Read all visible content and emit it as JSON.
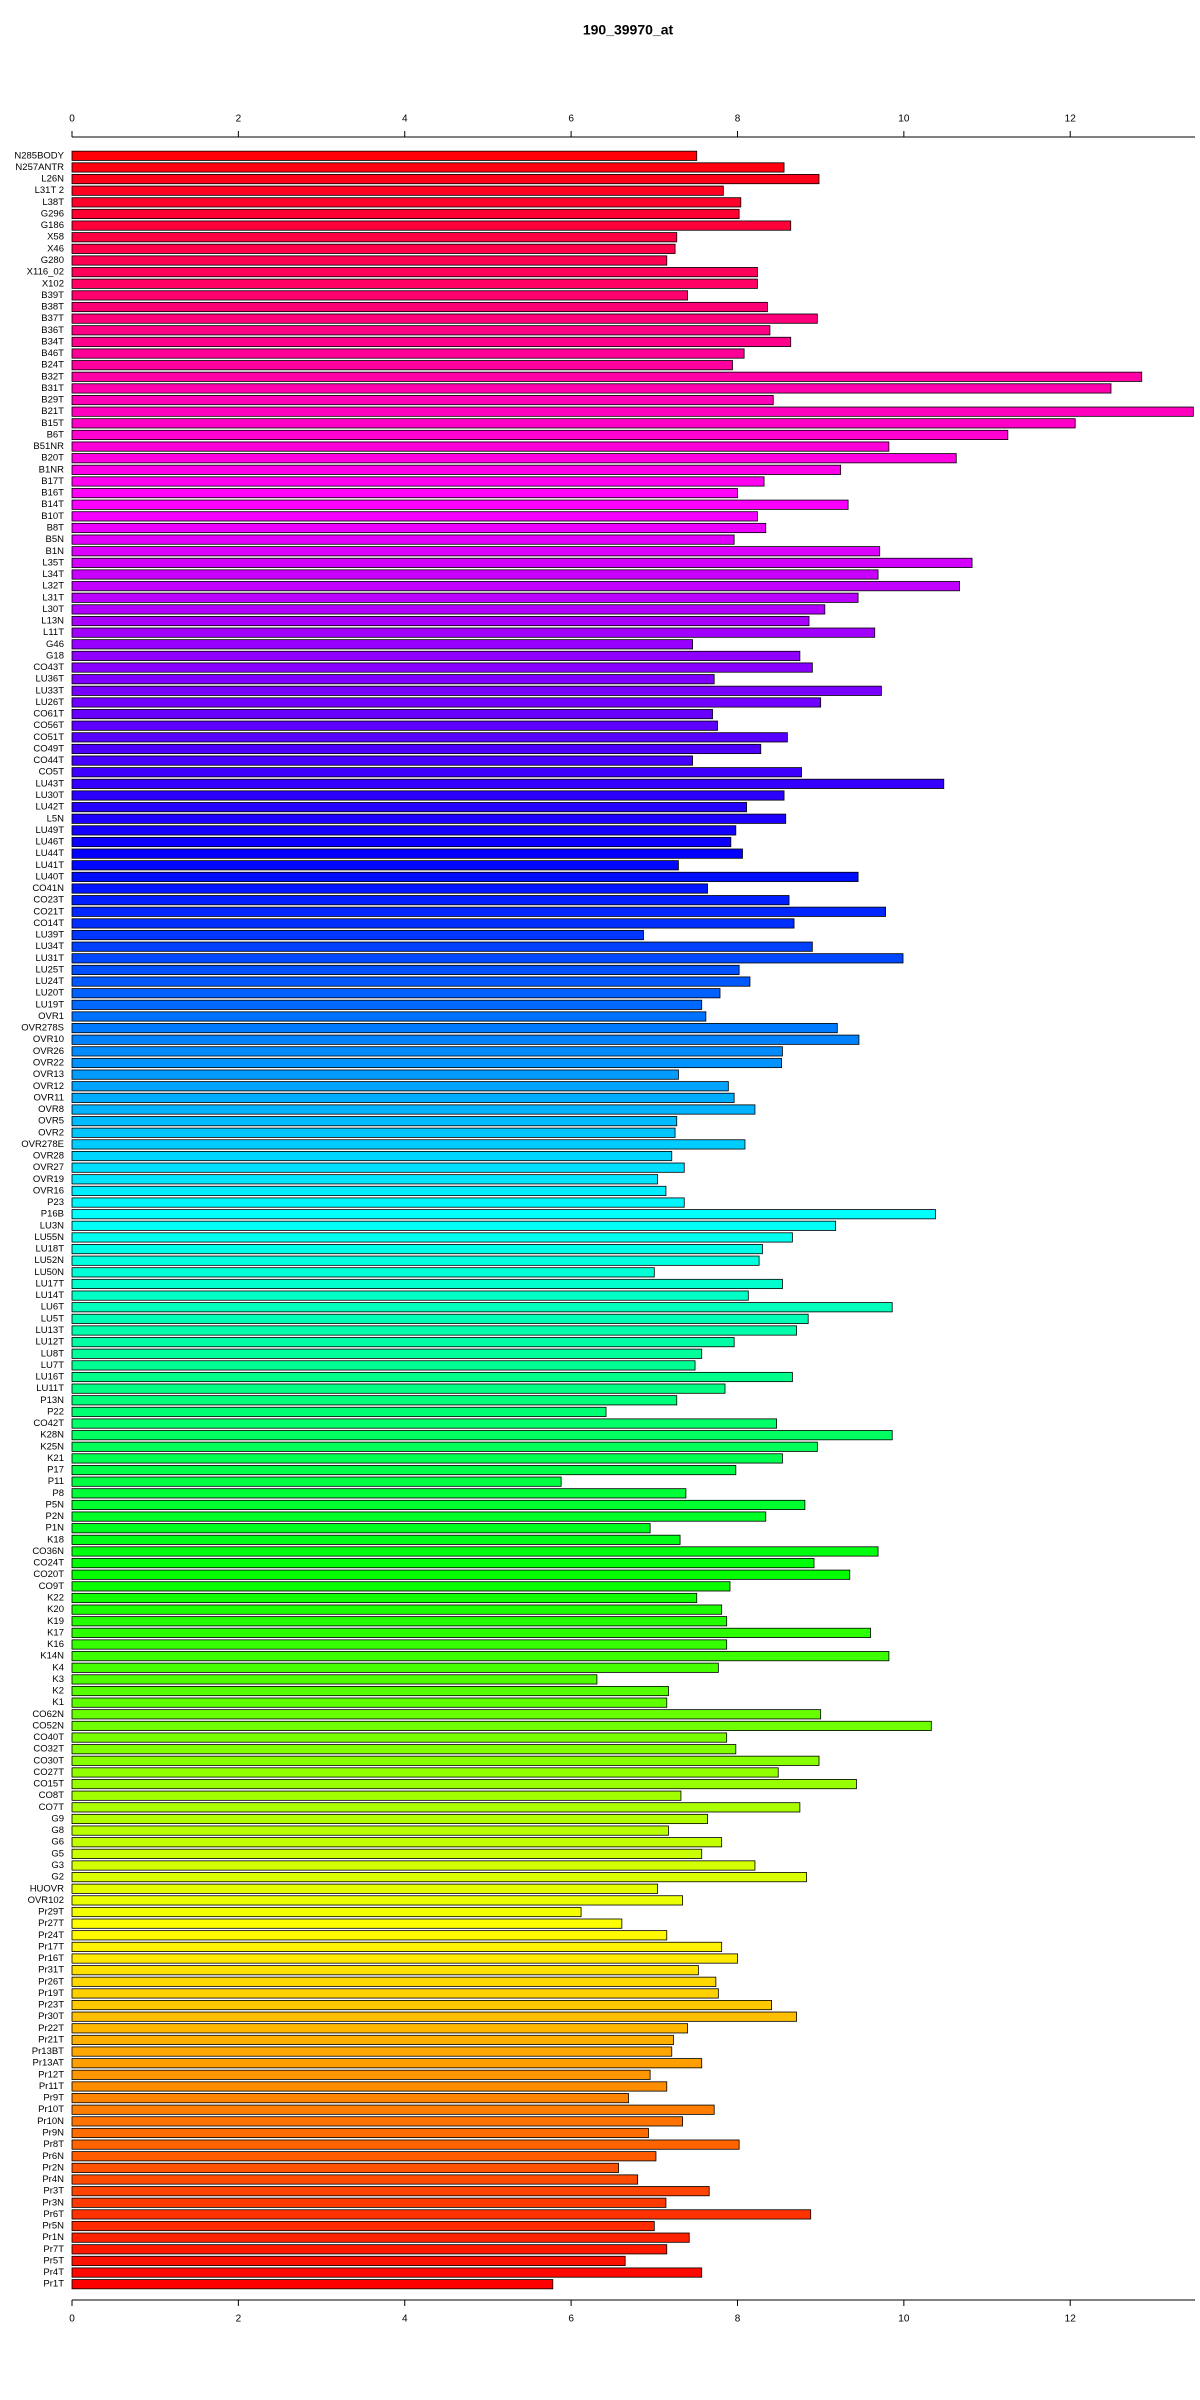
{
  "chart_data": {
    "type": "bar",
    "orientation": "horizontal",
    "title": "190_39970_at",
    "categories": [
      "N285BODY",
      "N257ANTR",
      "L26N",
      "L31T 2",
      "L38T",
      "G296",
      "G186",
      "X58",
      "X46",
      "G280",
      "X116_02",
      "X102",
      "B39T",
      "B38T",
      "B37T",
      "B36T",
      "B34T",
      "B46T",
      "B24T",
      "B32T",
      "B31T",
      "B29T",
      "B21T",
      "B15T",
      "B6T",
      "B51NR",
      "B20T",
      "B1NR",
      "B17T",
      "B16T",
      "B14T",
      "B10T",
      "B8T",
      "B5N",
      "B1N",
      "L35T",
      "L34T",
      "L32T",
      "L31T",
      "L30T",
      "L13N",
      "L11T",
      "G46",
      "G18",
      "CO43T",
      "LU36T",
      "LU33T",
      "LU26T",
      "CO61T",
      "CO56T",
      "CO51T",
      "CO49T",
      "CO44T",
      "CO5T",
      "LU43T",
      "LU30T",
      "LU42T",
      "L5N",
      "LU49T",
      "LU46T",
      "LU44T",
      "LU41T",
      "LU40T",
      "CO41N",
      "CO23T",
      "CO21T",
      "CO14T",
      "LU39T",
      "LU34T",
      "LU31T",
      "LU25T",
      "LU24T",
      "LU20T",
      "LU19T",
      "OVR1",
      "OVR278S",
      "OVR10",
      "OVR26",
      "OVR22",
      "OVR13",
      "OVR12",
      "OVR11",
      "OVR8",
      "OVR5",
      "OVR2",
      "OVR278E",
      "OVR28",
      "OVR27",
      "OVR19",
      "OVR16",
      "P23",
      "P16B",
      "LU3N",
      "LU55N",
      "LU18T",
      "LU52N",
      "LU50N",
      "LU17T",
      "LU14T",
      "LU6T",
      "LU5T",
      "LU13T",
      "LU12T",
      "LU8T",
      "LU7T",
      "LU16T",
      "LU11T",
      "P13N",
      "P22",
      "CO42T",
      "K28N",
      "K25N",
      "K21",
      "P17",
      "P11",
      "P8",
      "P5N",
      "P2N",
      "P1N",
      "K18",
      "CO36N",
      "CO24T",
      "CO20T",
      "CO9T",
      "K22",
      "K20",
      "K19",
      "K17",
      "K16",
      "K14N",
      "K4",
      "K3",
      "K2",
      "K1",
      "CO62N",
      "CO52N",
      "CO40T",
      "CO32T",
      "CO30T",
      "CO27T",
      "CO15T",
      "CO8T",
      "CO7T",
      "G9",
      "G8",
      "G6",
      "G5",
      "G3",
      "G2",
      "HUOVR",
      "OVR102",
      "Pr29T",
      "Pr27T",
      "Pr24T",
      "Pr17T",
      "Pr16T",
      "Pr31T",
      "Pr26T",
      "Pr19T",
      "Pr23T",
      "Pr30T",
      "Pr22T",
      "Pr21T",
      "Pr13BT",
      "Pr13AT",
      "Pr12T",
      "Pr11T",
      "Pr9T",
      "Pr10T",
      "Pr10N",
      "Pr9N",
      "Pr8T",
      "Pr6N",
      "Pr2N",
      "Pr4N",
      "Pr3T",
      "Pr3N",
      "Pr6T",
      "Pr5N",
      "Pr1N",
      "Pr7T",
      "Pr5T",
      "Pr4T",
      "Pr1T"
    ],
    "values": [
      7.51,
      8.56,
      8.98,
      7.83,
      8.04,
      8.02,
      8.64,
      7.27,
      7.25,
      7.15,
      8.24,
      8.24,
      7.4,
      8.36,
      8.96,
      8.39,
      8.64,
      8.08,
      7.94,
      12.86,
      12.49,
      8.43,
      13.48,
      12.06,
      11.25,
      9.82,
      10.63,
      9.24,
      8.32,
      8.0,
      9.33,
      8.24,
      8.34,
      7.96,
      9.71,
      10.82,
      9.69,
      10.67,
      9.45,
      9.05,
      8.86,
      9.65,
      7.46,
      8.75,
      8.9,
      7.72,
      9.73,
      9.0,
      7.7,
      7.76,
      8.6,
      8.28,
      7.46,
      8.77,
      10.48,
      8.56,
      8.11,
      8.58,
      7.98,
      7.92,
      8.06,
      7.29,
      9.45,
      7.64,
      8.62,
      9.78,
      8.68,
      6.87,
      8.9,
      9.99,
      8.02,
      8.15,
      7.79,
      7.57,
      7.62,
      9.2,
      9.46,
      8.54,
      8.53,
      7.29,
      7.89,
      7.96,
      8.21,
      7.27,
      7.25,
      8.09,
      7.21,
      7.36,
      7.04,
      7.14,
      7.36,
      10.38,
      9.18,
      8.66,
      8.3,
      8.26,
      7.0,
      8.54,
      8.13,
      9.86,
      8.85,
      8.71,
      7.96,
      7.57,
      7.49,
      8.66,
      7.85,
      7.27,
      6.42,
      8.47,
      9.86,
      8.96,
      8.54,
      7.98,
      5.88,
      7.38,
      8.81,
      8.34,
      6.95,
      7.31,
      9.69,
      8.92,
      9.35,
      7.91,
      7.51,
      7.81,
      7.87,
      9.6,
      7.87,
      9.82,
      7.77,
      6.31,
      7.17,
      7.15,
      9.0,
      10.33,
      7.87,
      7.98,
      8.98,
      8.49,
      9.43,
      7.32,
      8.75,
      7.64,
      7.17,
      7.81,
      7.57,
      8.21,
      8.83,
      7.04,
      7.34,
      6.12,
      6.61,
      7.15,
      7.81,
      8.0,
      7.53,
      7.74,
      7.77,
      8.41,
      8.71,
      7.4,
      7.23,
      7.21,
      7.57,
      6.95,
      7.15,
      6.69,
      7.72,
      7.34,
      6.93,
      8.02,
      7.02,
      6.57,
      6.8,
      7.66,
      7.14,
      8.88,
      7.0,
      7.42,
      7.15,
      6.65,
      7.57,
      5.78
    ],
    "xlim": [
      0,
      13.5
    ],
    "xticks": [
      0,
      2,
      4,
      6,
      8,
      10,
      12
    ],
    "color_scheme": "rainbow"
  }
}
